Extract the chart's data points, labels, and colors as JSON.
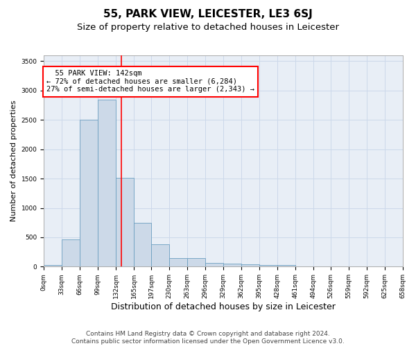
{
  "title": "55, PARK VIEW, LEICESTER, LE3 6SJ",
  "subtitle": "Size of property relative to detached houses in Leicester",
  "xlabel": "Distribution of detached houses by size in Leicester",
  "ylabel": "Number of detached properties",
  "bar_color": "#ccd9e8",
  "bar_edge_color": "#6a9ec0",
  "red_line_x": 142,
  "bin_edges": [
    0,
    33,
    66,
    99,
    132,
    165,
    197,
    230,
    263,
    296,
    329,
    362,
    395,
    428,
    461,
    494,
    526,
    559,
    592,
    625,
    658
  ],
  "bar_heights": [
    25,
    465,
    2500,
    2840,
    1510,
    750,
    380,
    145,
    140,
    60,
    55,
    45,
    32,
    28,
    0,
    0,
    0,
    0,
    0,
    0
  ],
  "tick_labels": [
    "0sqm",
    "33sqm",
    "66sqm",
    "99sqm",
    "132sqm",
    "165sqm",
    "197sqm",
    "230sqm",
    "263sqm",
    "296sqm",
    "329sqm",
    "362sqm",
    "395sqm",
    "428sqm",
    "461sqm",
    "494sqm",
    "526sqm",
    "559sqm",
    "592sqm",
    "625sqm",
    "658sqm"
  ],
  "ylim": [
    0,
    3600
  ],
  "yticks": [
    0,
    500,
    1000,
    1500,
    2000,
    2500,
    3000,
    3500
  ],
  "annotation_text": "  55 PARK VIEW: 142sqm\n← 72% of detached houses are smaller (6,284)\n27% of semi-detached houses are larger (2,343) →",
  "annotation_box_color": "white",
  "annotation_box_edge": "red",
  "grid_color": "#ccd8ea",
  "background_color": "#e8eef6",
  "footer_text": "Contains HM Land Registry data © Crown copyright and database right 2024.\nContains public sector information licensed under the Open Government Licence v3.0.",
  "title_fontsize": 11,
  "subtitle_fontsize": 9.5,
  "xlabel_fontsize": 9,
  "ylabel_fontsize": 8,
  "tick_fontsize": 6.5,
  "annotation_fontsize": 7.5,
  "footer_fontsize": 6.5
}
